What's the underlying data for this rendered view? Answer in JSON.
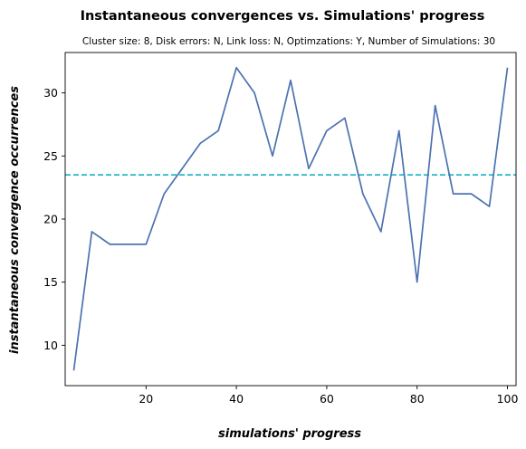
{
  "chart_data": {
    "type": "line",
    "title": "Instantaneous convergences vs. Simulations' progress",
    "subtitle": "Cluster size: 8, Disk errors: N, Link loss: N, Optimzations: Y, Number of Simulations: 30",
    "xlabel": "simulations' progress",
    "ylabel": "instantaneous convergence occurrences",
    "xlim": [
      2.1,
      101.9
    ],
    "ylim": [
      6.8,
      33.2
    ],
    "x_ticks": [
      20,
      40,
      60,
      80,
      100
    ],
    "y_ticks": [
      10,
      15,
      20,
      25,
      30
    ],
    "grid": false,
    "series": [
      {
        "color": "#4c72b0",
        "x": [
          4,
          8,
          12,
          16,
          20,
          24,
          28,
          32,
          36,
          40,
          44,
          48,
          52,
          56,
          60,
          64,
          68,
          72,
          76,
          80,
          84,
          88,
          92,
          96,
          100
        ],
        "values": [
          8,
          19,
          18,
          18,
          18,
          22,
          24,
          26,
          27,
          32,
          30,
          25,
          31,
          24,
          27,
          28,
          22,
          19,
          27,
          15,
          29,
          22,
          22,
          21,
          32
        ]
      }
    ],
    "reference_line": {
      "y": 23.5,
      "style": "dashed",
      "color": "#17b3c0"
    }
  }
}
